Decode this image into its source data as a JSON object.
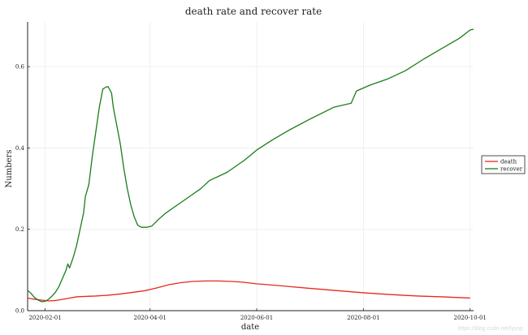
{
  "chart_data": {
    "type": "line",
    "title": "death rate and recover rate",
    "xlabel": "date",
    "ylabel": "Numbers",
    "x_range": [
      "2020-01-22",
      "2020-10-03"
    ],
    "ylim": [
      0,
      0.71
    ],
    "x_ticks": [
      "2020-02-01",
      "2020-04-01",
      "2020-06-01",
      "2020-08-01",
      "2020-10-01"
    ],
    "y_ticks": [
      0.0,
      0.2,
      0.4,
      0.6
    ],
    "y_tick_labels": [
      "0.0",
      "0.2",
      "0.4",
      "0.6"
    ],
    "grid": true,
    "legend_position": "right",
    "series": [
      {
        "name": "death",
        "color": "#e8281e",
        "points": [
          [
            "2020-01-22",
            0.031
          ],
          [
            "2020-01-26",
            0.028
          ],
          [
            "2020-01-30",
            0.026
          ],
          [
            "2020-02-03",
            0.024
          ],
          [
            "2020-02-07",
            0.025
          ],
          [
            "2020-02-11",
            0.028
          ],
          [
            "2020-02-15",
            0.031
          ],
          [
            "2020-02-19",
            0.034
          ],
          [
            "2020-02-24",
            0.035
          ],
          [
            "2020-03-01",
            0.036
          ],
          [
            "2020-03-08",
            0.038
          ],
          [
            "2020-03-15",
            0.041
          ],
          [
            "2020-03-22",
            0.045
          ],
          [
            "2020-03-29",
            0.049
          ],
          [
            "2020-04-05",
            0.056
          ],
          [
            "2020-04-12",
            0.064
          ],
          [
            "2020-04-19",
            0.069
          ],
          [
            "2020-04-26",
            0.072
          ],
          [
            "2020-05-03",
            0.073
          ],
          [
            "2020-05-10",
            0.073
          ],
          [
            "2020-05-17",
            0.072
          ],
          [
            "2020-05-24",
            0.07
          ],
          [
            "2020-06-01",
            0.066
          ],
          [
            "2020-06-15",
            0.061
          ],
          [
            "2020-07-01",
            0.055
          ],
          [
            "2020-07-15",
            0.05
          ],
          [
            "2020-08-01",
            0.044
          ],
          [
            "2020-08-15",
            0.04
          ],
          [
            "2020-09-01",
            0.036
          ],
          [
            "2020-09-15",
            0.034
          ],
          [
            "2020-10-01",
            0.031
          ]
        ]
      },
      {
        "name": "recover",
        "color": "#1a7d1a",
        "points": [
          [
            "2020-01-22",
            0.05
          ],
          [
            "2020-01-24",
            0.042
          ],
          [
            "2020-01-26",
            0.032
          ],
          [
            "2020-01-28",
            0.026
          ],
          [
            "2020-01-30",
            0.022
          ],
          [
            "2020-02-01",
            0.023
          ],
          [
            "2020-02-03",
            0.028
          ],
          [
            "2020-02-05",
            0.036
          ],
          [
            "2020-02-07",
            0.046
          ],
          [
            "2020-02-09",
            0.06
          ],
          [
            "2020-02-11",
            0.08
          ],
          [
            "2020-02-13",
            0.1
          ],
          [
            "2020-02-14",
            0.115
          ],
          [
            "2020-02-15",
            0.105
          ],
          [
            "2020-02-17",
            0.13
          ],
          [
            "2020-02-19",
            0.16
          ],
          [
            "2020-02-21",
            0.2
          ],
          [
            "2020-02-23",
            0.24
          ],
          [
            "2020-02-24",
            0.28
          ],
          [
            "2020-02-26",
            0.31
          ],
          [
            "2020-02-28",
            0.38
          ],
          [
            "2020-03-01",
            0.44
          ],
          [
            "2020-03-03",
            0.5
          ],
          [
            "2020-03-05",
            0.545
          ],
          [
            "2020-03-07",
            0.55
          ],
          [
            "2020-03-08",
            0.551
          ],
          [
            "2020-03-10",
            0.535
          ],
          [
            "2020-03-11",
            0.5
          ],
          [
            "2020-03-13",
            0.455
          ],
          [
            "2020-03-15",
            0.41
          ],
          [
            "2020-03-17",
            0.35
          ],
          [
            "2020-03-19",
            0.3
          ],
          [
            "2020-03-21",
            0.26
          ],
          [
            "2020-03-23",
            0.23
          ],
          [
            "2020-03-25",
            0.21
          ],
          [
            "2020-03-27",
            0.205
          ],
          [
            "2020-03-30",
            0.205
          ],
          [
            "2020-04-02",
            0.208
          ],
          [
            "2020-04-06",
            0.225
          ],
          [
            "2020-04-10",
            0.24
          ],
          [
            "2020-04-15",
            0.255
          ],
          [
            "2020-04-20",
            0.27
          ],
          [
            "2020-04-25",
            0.285
          ],
          [
            "2020-04-30",
            0.3
          ],
          [
            "2020-05-05",
            0.32
          ],
          [
            "2020-05-15",
            0.34
          ],
          [
            "2020-05-25",
            0.37
          ],
          [
            "2020-06-01",
            0.395
          ],
          [
            "2020-06-10",
            0.42
          ],
          [
            "2020-06-20",
            0.445
          ],
          [
            "2020-07-01",
            0.47
          ],
          [
            "2020-07-15",
            0.5
          ],
          [
            "2020-07-25",
            0.51
          ],
          [
            "2020-07-28",
            0.54
          ],
          [
            "2020-08-05",
            0.555
          ],
          [
            "2020-08-15",
            0.57
          ],
          [
            "2020-08-25",
            0.59
          ],
          [
            "2020-09-05",
            0.62
          ],
          [
            "2020-09-15",
            0.645
          ],
          [
            "2020-09-25",
            0.67
          ],
          [
            "2020-10-01",
            0.69
          ],
          [
            "2020-10-03",
            0.692
          ]
        ]
      }
    ]
  },
  "watermark": "https://blog.csdn.net/lyysp"
}
